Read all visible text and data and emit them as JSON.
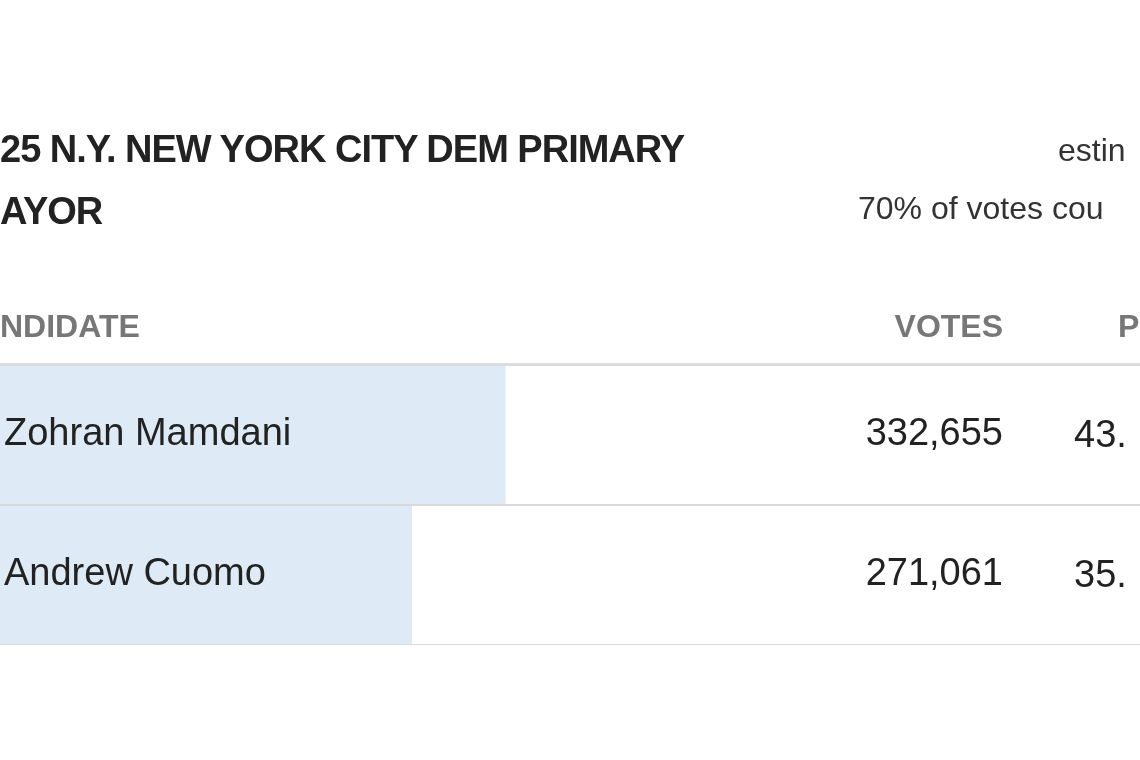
{
  "chart_data": {
    "type": "bar",
    "orientation": "horizontal",
    "title": "25 N.Y. NEW YORK CITY DEM PRIMARY",
    "subtitle": "AYOR",
    "categories": [
      "Zohran Mamdani",
      "Andrew Cuomo"
    ],
    "values": [
      332655,
      271061
    ],
    "value_labels": [
      "332,655",
      "271,061"
    ],
    "color": "#deeaf6",
    "xlim": [
      0,
      750000
    ],
    "tick_labels": false,
    "grid": "y",
    "legend": false,
    "annotations": [
      "estin",
      "70% of votes cou",
      "NDIDATE",
      "VOTES",
      "P",
      "43.",
      "35."
    ]
  }
}
